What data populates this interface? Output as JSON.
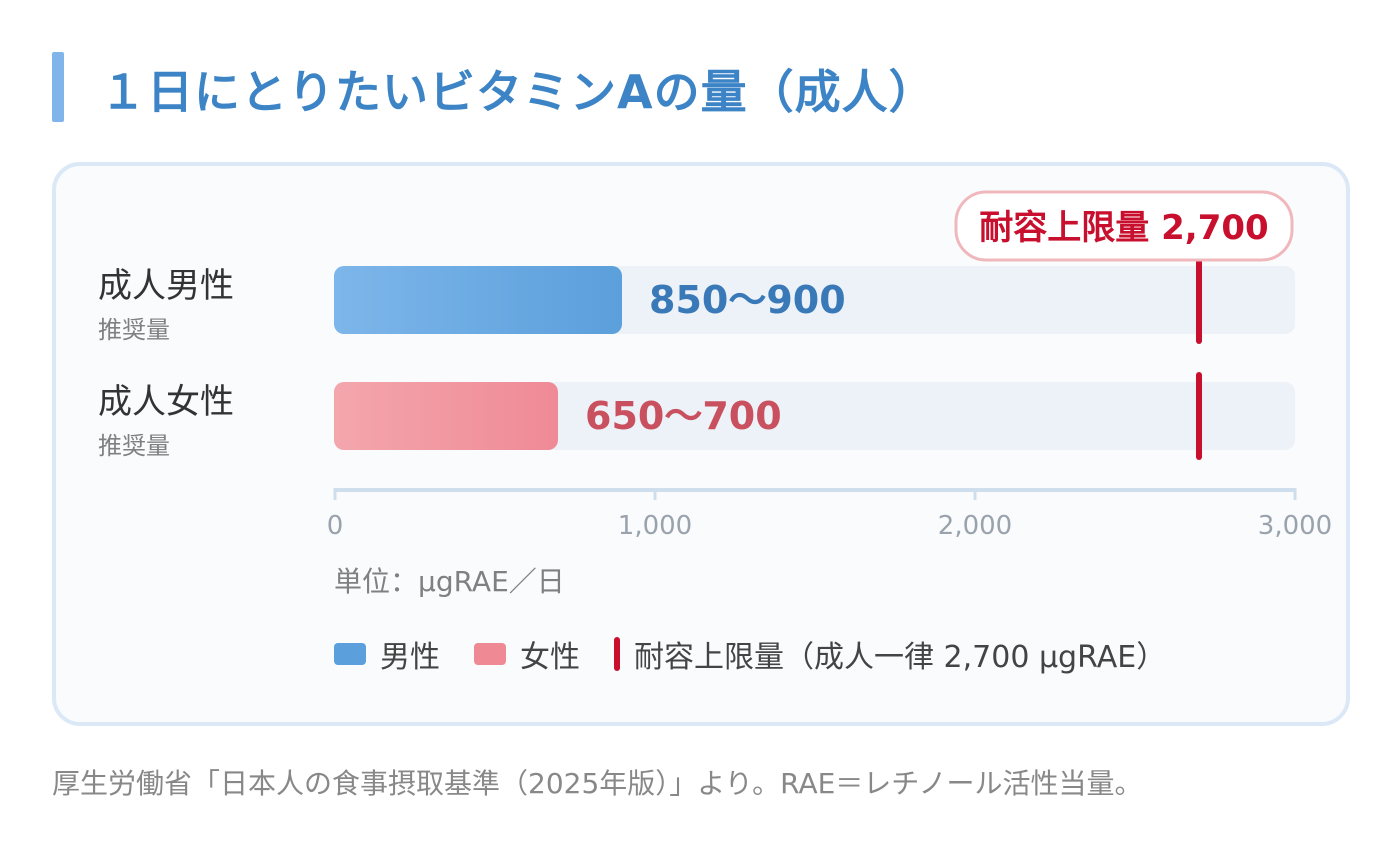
{
  "title": "１日にとりたいビタミンAの量（成人）",
  "rows": [
    {
      "label": "成人男性",
      "sub": "推奨量"
    },
    {
      "label": "成人女性",
      "sub": "推奨量"
    }
  ],
  "chart_data": {
    "type": "bar",
    "orientation": "horizontal",
    "categories": [
      "成人男性",
      "成人女性"
    ],
    "series": [
      {
        "name": "男性",
        "value_range": [
          850,
          900
        ],
        "plotted_value": 900,
        "label": "850〜900",
        "color": "#5b9fdc",
        "label_color": "#3a79b8"
      },
      {
        "name": "女性",
        "value_range": [
          650,
          700
        ],
        "plotted_value": 700,
        "label": "650〜700",
        "color": "#ef8a95",
        "label_color": "#c9505e"
      }
    ],
    "reference_line": {
      "value": 2700,
      "label": "耐容上限量 2,700",
      "color": "#c8102e"
    },
    "xlim": [
      0,
      3000
    ],
    "xticks": [
      0,
      1000,
      2000,
      3000
    ],
    "xtick_labels": [
      "0",
      "1,000",
      "2,000",
      "3,000"
    ],
    "unit": "単位：μgRAE／日"
  },
  "legend": {
    "male": "男性",
    "female": "女性",
    "ul": "耐容上限量（成人一律 2,700 μgRAE）"
  },
  "source": "厚生労働省「日本人の食事摂取基準（2025年版）」より。RAE＝レチノール活性当量。"
}
